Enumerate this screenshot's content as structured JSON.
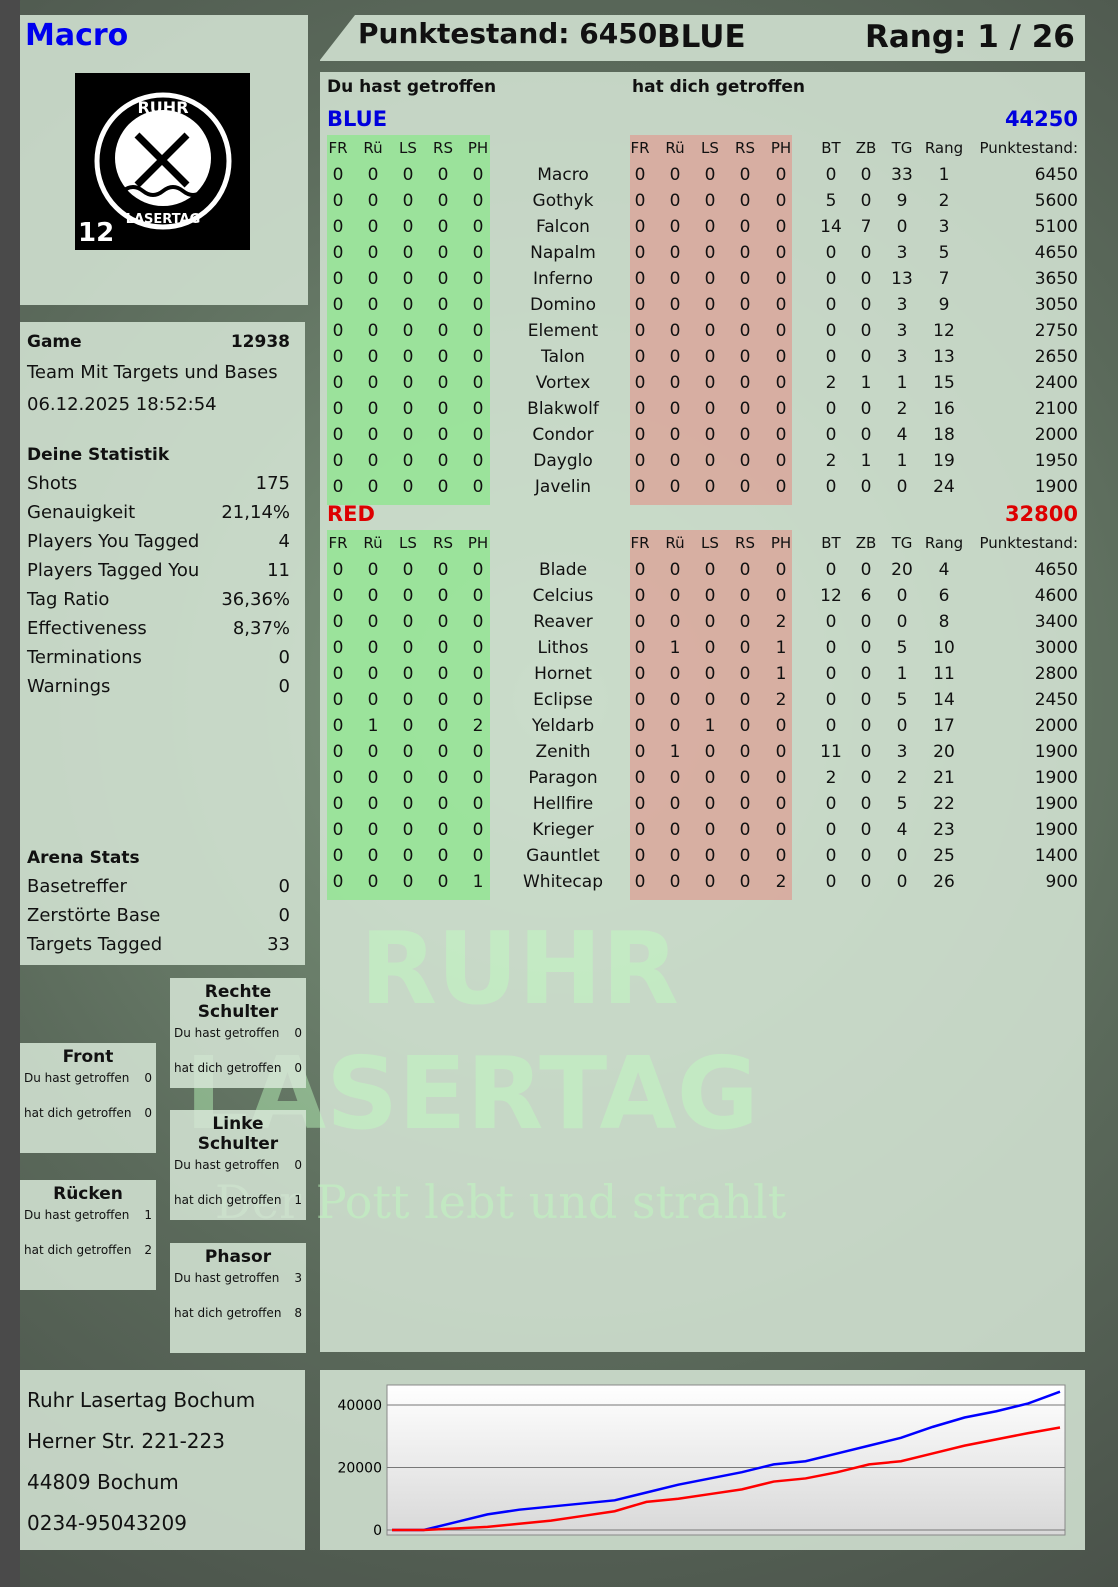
{
  "player": {
    "name": "Macro",
    "logo_text": "RUHR LASERTAG",
    "logo_number": "12"
  },
  "header": {
    "score": "Punktestand: 6450",
    "team": "BLUE",
    "rank": "Rang: 1 / 26"
  },
  "table": {
    "you_hit_label": "Du hast getroffen",
    "hit_you_label": "hat dich getroffen",
    "zone_headers": [
      "FR",
      "Rü",
      "LS",
      "RS",
      "PH"
    ],
    "stat_headers": [
      "BT",
      "ZB",
      "TG",
      "Rang",
      "Punktestand:"
    ],
    "teams": [
      {
        "name": "BLUE",
        "score": "44250",
        "color": "#0000dd",
        "players": [
          {
            "name": "Macro",
            "you": [
              0,
              0,
              0,
              0,
              0
            ],
            "them": [
              0,
              0,
              0,
              0,
              0
            ],
            "bt": 0,
            "zb": 0,
            "tg": 33,
            "rank": 1,
            "points": 6450
          },
          {
            "name": "Gothyk",
            "you": [
              0,
              0,
              0,
              0,
              0
            ],
            "them": [
              0,
              0,
              0,
              0,
              0
            ],
            "bt": 5,
            "zb": 0,
            "tg": 9,
            "rank": 2,
            "points": 5600
          },
          {
            "name": "Falcon",
            "you": [
              0,
              0,
              0,
              0,
              0
            ],
            "them": [
              0,
              0,
              0,
              0,
              0
            ],
            "bt": 14,
            "zb": 7,
            "tg": 0,
            "rank": 3,
            "points": 5100
          },
          {
            "name": "Napalm",
            "you": [
              0,
              0,
              0,
              0,
              0
            ],
            "them": [
              0,
              0,
              0,
              0,
              0
            ],
            "bt": 0,
            "zb": 0,
            "tg": 3,
            "rank": 5,
            "points": 4650
          },
          {
            "name": "Inferno",
            "you": [
              0,
              0,
              0,
              0,
              0
            ],
            "them": [
              0,
              0,
              0,
              0,
              0
            ],
            "bt": 0,
            "zb": 0,
            "tg": 13,
            "rank": 7,
            "points": 3650
          },
          {
            "name": "Domino",
            "you": [
              0,
              0,
              0,
              0,
              0
            ],
            "them": [
              0,
              0,
              0,
              0,
              0
            ],
            "bt": 0,
            "zb": 0,
            "tg": 3,
            "rank": 9,
            "points": 3050
          },
          {
            "name": "Element",
            "you": [
              0,
              0,
              0,
              0,
              0
            ],
            "them": [
              0,
              0,
              0,
              0,
              0
            ],
            "bt": 0,
            "zb": 0,
            "tg": 3,
            "rank": 12,
            "points": 2750
          },
          {
            "name": "Talon",
            "you": [
              0,
              0,
              0,
              0,
              0
            ],
            "them": [
              0,
              0,
              0,
              0,
              0
            ],
            "bt": 0,
            "zb": 0,
            "tg": 3,
            "rank": 13,
            "points": 2650
          },
          {
            "name": "Vortex",
            "you": [
              0,
              0,
              0,
              0,
              0
            ],
            "them": [
              0,
              0,
              0,
              0,
              0
            ],
            "bt": 2,
            "zb": 1,
            "tg": 1,
            "rank": 15,
            "points": 2400
          },
          {
            "name": "Blakwolf",
            "you": [
              0,
              0,
              0,
              0,
              0
            ],
            "them": [
              0,
              0,
              0,
              0,
              0
            ],
            "bt": 0,
            "zb": 0,
            "tg": 2,
            "rank": 16,
            "points": 2100
          },
          {
            "name": "Condor",
            "you": [
              0,
              0,
              0,
              0,
              0
            ],
            "them": [
              0,
              0,
              0,
              0,
              0
            ],
            "bt": 0,
            "zb": 0,
            "tg": 4,
            "rank": 18,
            "points": 2000
          },
          {
            "name": "Dayglo",
            "you": [
              0,
              0,
              0,
              0,
              0
            ],
            "them": [
              0,
              0,
              0,
              0,
              0
            ],
            "bt": 2,
            "zb": 1,
            "tg": 1,
            "rank": 19,
            "points": 1950
          },
          {
            "name": "Javelin",
            "you": [
              0,
              0,
              0,
              0,
              0
            ],
            "them": [
              0,
              0,
              0,
              0,
              0
            ],
            "bt": 0,
            "zb": 0,
            "tg": 0,
            "rank": 24,
            "points": 1900
          }
        ]
      },
      {
        "name": "RED",
        "score": "32800",
        "color": "#dd0000",
        "players": [
          {
            "name": "Blade",
            "you": [
              0,
              0,
              0,
              0,
              0
            ],
            "them": [
              0,
              0,
              0,
              0,
              0
            ],
            "bt": 0,
            "zb": 0,
            "tg": 20,
            "rank": 4,
            "points": 4650
          },
          {
            "name": "Celcius",
            "you": [
              0,
              0,
              0,
              0,
              0
            ],
            "them": [
              0,
              0,
              0,
              0,
              0
            ],
            "bt": 12,
            "zb": 6,
            "tg": 0,
            "rank": 6,
            "points": 4600
          },
          {
            "name": "Reaver",
            "you": [
              0,
              0,
              0,
              0,
              0
            ],
            "them": [
              0,
              0,
              0,
              0,
              2
            ],
            "bt": 0,
            "zb": 0,
            "tg": 0,
            "rank": 8,
            "points": 3400
          },
          {
            "name": "Lithos",
            "you": [
              0,
              0,
              0,
              0,
              0
            ],
            "them": [
              0,
              1,
              0,
              0,
              1
            ],
            "bt": 0,
            "zb": 0,
            "tg": 5,
            "rank": 10,
            "points": 3000
          },
          {
            "name": "Hornet",
            "you": [
              0,
              0,
              0,
              0,
              0
            ],
            "them": [
              0,
              0,
              0,
              0,
              1
            ],
            "bt": 0,
            "zb": 0,
            "tg": 1,
            "rank": 11,
            "points": 2800
          },
          {
            "name": "Eclipse",
            "you": [
              0,
              0,
              0,
              0,
              0
            ],
            "them": [
              0,
              0,
              0,
              0,
              2
            ],
            "bt": 0,
            "zb": 0,
            "tg": 5,
            "rank": 14,
            "points": 2450
          },
          {
            "name": "Yeldarb",
            "you": [
              0,
              1,
              0,
              0,
              2
            ],
            "them": [
              0,
              0,
              1,
              0,
              0
            ],
            "bt": 0,
            "zb": 0,
            "tg": 0,
            "rank": 17,
            "points": 2000
          },
          {
            "name": "Zenith",
            "you": [
              0,
              0,
              0,
              0,
              0
            ],
            "them": [
              0,
              1,
              0,
              0,
              0
            ],
            "bt": 11,
            "zb": 0,
            "tg": 3,
            "rank": 20,
            "points": 1900
          },
          {
            "name": "Paragon",
            "you": [
              0,
              0,
              0,
              0,
              0
            ],
            "them": [
              0,
              0,
              0,
              0,
              0
            ],
            "bt": 2,
            "zb": 0,
            "tg": 2,
            "rank": 21,
            "points": 1900
          },
          {
            "name": "Hellfire",
            "you": [
              0,
              0,
              0,
              0,
              0
            ],
            "them": [
              0,
              0,
              0,
              0,
              0
            ],
            "bt": 0,
            "zb": 0,
            "tg": 5,
            "rank": 22,
            "points": 1900
          },
          {
            "name": "Krieger",
            "you": [
              0,
              0,
              0,
              0,
              0
            ],
            "them": [
              0,
              0,
              0,
              0,
              0
            ],
            "bt": 0,
            "zb": 0,
            "tg": 4,
            "rank": 23,
            "points": 1900
          },
          {
            "name": "Gauntlet",
            "you": [
              0,
              0,
              0,
              0,
              0
            ],
            "them": [
              0,
              0,
              0,
              0,
              0
            ],
            "bt": 0,
            "zb": 0,
            "tg": 0,
            "rank": 25,
            "points": 1400
          },
          {
            "name": "Whitecap",
            "you": [
              0,
              0,
              0,
              0,
              1
            ],
            "them": [
              0,
              0,
              0,
              0,
              2
            ],
            "bt": 0,
            "zb": 0,
            "tg": 0,
            "rank": 26,
            "points": 900
          }
        ]
      }
    ]
  },
  "game": {
    "label": "Game",
    "id": "12938",
    "mode": "Team Mit Targets und Bases",
    "datetime": "06.12.2025 18:52:54"
  },
  "stats": {
    "title": "Deine Statistik",
    "items": [
      {
        "label": "Shots",
        "value": "175"
      },
      {
        "label": "Genauigkeit",
        "value": "21,14%"
      },
      {
        "label": "Players You Tagged",
        "value": "4"
      },
      {
        "label": "Players Tagged You",
        "value": "11"
      },
      {
        "label": "Tag Ratio",
        "value": "36,36%"
      },
      {
        "label": "Effectiveness",
        "value": "8,37%"
      },
      {
        "label": "Terminations",
        "value": "0"
      },
      {
        "label": "Warnings",
        "value": "0"
      }
    ]
  },
  "arena": {
    "title": "Arena Stats",
    "items": [
      {
        "label": "Basetreffer",
        "value": "0"
      },
      {
        "label": "Zerstörte Base",
        "value": "0"
      },
      {
        "label": "Targets Tagged",
        "value": "33"
      }
    ]
  },
  "zones": [
    {
      "title": "Front",
      "you": "0",
      "them": "0"
    },
    {
      "title": "Rücken",
      "you": "1",
      "them": "2"
    },
    {
      "title": "Rechte Schulter",
      "you": "0",
      "them": "0"
    },
    {
      "title": "Linke Schulter",
      "you": "0",
      "them": "1"
    },
    {
      "title": "Phasor",
      "you": "3",
      "them": "8"
    }
  ],
  "address": {
    "name": "Ruhr Lasertag Bochum",
    "street": "Herner Str. 221-223",
    "city": "44809 Bochum",
    "phone": "0234-95043209"
  },
  "watermark": {
    "line1": "RUHR",
    "line2": "LASERTAG",
    "slogan": "Der Pott lebt und strahlt"
  },
  "chart_data": {
    "type": "line",
    "ylim": [
      0,
      45000
    ],
    "yticks": [
      "0",
      "20000",
      "40000"
    ],
    "grid": true,
    "series": [
      {
        "color": "#0000ff",
        "values": [
          0,
          0,
          2500,
          5000,
          6500,
          7500,
          8500,
          9500,
          12000,
          14500,
          16500,
          18500,
          21000,
          22000,
          24500,
          27000,
          29500,
          33000,
          36000,
          38000,
          40500,
          44250
        ]
      },
      {
        "color": "#ff0000",
        "values": [
          0,
          0,
          500,
          1000,
          2000,
          3000,
          4500,
          6000,
          9000,
          10000,
          11500,
          13000,
          15500,
          16500,
          18500,
          21000,
          22000,
          24500,
          27000,
          29000,
          31000,
          32800
        ]
      }
    ]
  }
}
